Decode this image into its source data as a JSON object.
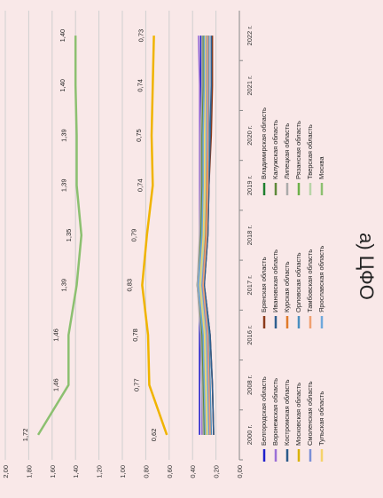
{
  "chart_data": {
    "type": "line",
    "orientation": "rotated-90-clockwise",
    "caption": "а) ЦФО",
    "categories": [
      "2000 г.",
      "2008 г.",
      "2016 г.",
      "2017 г.",
      "2018 г.",
      "2019 г.",
      "2020 г.",
      "2021 г.",
      "2022 г."
    ],
    "y_ticks": [
      "0,00",
      "0,20",
      "0,40",
      "0,60",
      "0,80",
      "1,00",
      "1,20",
      "1,40",
      "1,60",
      "1,80",
      "2,00"
    ],
    "ylim": [
      0,
      2
    ],
    "grid": true,
    "legend_position": "right",
    "series": [
      {
        "name": "Белгородская область",
        "color": "#1f1fcc",
        "values": [
          0.34,
          0.34,
          0.34,
          0.34,
          0.33,
          0.33,
          0.33,
          0.33,
          0.33
        ]
      },
      {
        "name": "Брянская область",
        "color": "#8b3a1a",
        "values": [
          0.22,
          0.23,
          0.25,
          0.3,
          0.27,
          0.26,
          0.24,
          0.23,
          0.23
        ]
      },
      {
        "name": "Владимирская область",
        "color": "#1e7f2e",
        "values": [
          0.3,
          0.31,
          0.32,
          0.36,
          0.33,
          0.32,
          0.31,
          0.3,
          0.3
        ]
      },
      {
        "name": "Воронежская область",
        "color": "#9b6fd6",
        "values": [
          0.32,
          0.32,
          0.33,
          0.35,
          0.34,
          0.34,
          0.34,
          0.34,
          0.35
        ]
      },
      {
        "name": "Ивановская область",
        "color": "#2f5f8f",
        "values": [
          0.22,
          0.23,
          0.25,
          0.3,
          0.27,
          0.26,
          0.25,
          0.24,
          0.24
        ]
      },
      {
        "name": "Калужская область",
        "color": "#5e8a3a",
        "values": [
          0.3,
          0.31,
          0.32,
          0.35,
          0.33,
          0.32,
          0.32,
          0.31,
          0.31
        ]
      },
      {
        "name": "Костромская область",
        "color": "#2b5a8a",
        "values": [
          0.25,
          0.26,
          0.27,
          0.32,
          0.29,
          0.28,
          0.27,
          0.27,
          0.27
        ]
      },
      {
        "name": "Курская область",
        "color": "#e07b2a",
        "values": [
          0.26,
          0.27,
          0.28,
          0.31,
          0.29,
          0.28,
          0.28,
          0.28,
          0.28
        ]
      },
      {
        "name": "Липецкая область",
        "color": "#aaaaaa",
        "values": [
          0.31,
          0.32,
          0.33,
          0.36,
          0.34,
          0.33,
          0.33,
          0.32,
          0.32
        ]
      },
      {
        "name": "Московская область",
        "color": "#d9b100",
        "values": [
          0.28,
          0.29,
          0.3,
          0.33,
          0.31,
          0.3,
          0.3,
          0.3,
          0.3
        ]
      },
      {
        "name": "Орловская область",
        "color": "#4a8fc0",
        "values": [
          0.24,
          0.25,
          0.26,
          0.31,
          0.28,
          0.27,
          0.26,
          0.26,
          0.26
        ]
      },
      {
        "name": "Рязанская область",
        "color": "#6db04a",
        "values": [
          0.27,
          0.28,
          0.29,
          0.33,
          0.3,
          0.29,
          0.29,
          0.28,
          0.28
        ]
      },
      {
        "name": "Смоленская область",
        "color": "#7a8fd6",
        "values": [
          0.26,
          0.27,
          0.28,
          0.32,
          0.3,
          0.29,
          0.28,
          0.28,
          0.28
        ]
      },
      {
        "name": "Тамбовская область",
        "color": "#f0a070",
        "values": [
          0.25,
          0.26,
          0.27,
          0.31,
          0.28,
          0.27,
          0.27,
          0.27,
          0.27
        ]
      },
      {
        "name": "Тверская область",
        "color": "#b8d4a8",
        "values": [
          0.27,
          0.28,
          0.29,
          0.33,
          0.3,
          0.29,
          0.29,
          0.29,
          0.29
        ]
      },
      {
        "name": "Тульская область",
        "color": "#f5d36a",
        "values": [
          0.28,
          0.29,
          0.3,
          0.34,
          0.31,
          0.3,
          0.3,
          0.29,
          0.29
        ]
      },
      {
        "name": "Ярославская область",
        "color": "#6fa8dc",
        "values": [
          0.29,
          0.3,
          0.31,
          0.35,
          0.32,
          0.31,
          0.31,
          0.3,
          0.3
        ]
      },
      {
        "name": "Москва",
        "color": "#8cc070",
        "values": [
          1.72,
          1.46,
          1.46,
          1.39,
          1.35,
          1.39,
          1.39,
          1.4,
          1.4
        ],
        "labels": [
          "1,72",
          "1,46",
          "1,46",
          "1,39",
          "1,35",
          "1,39",
          "1,39",
          "1,40",
          "1,40"
        ]
      },
      {
        "name": "",
        "color": "#f0b400",
        "values": [
          0.62,
          0.77,
          0.78,
          0.83,
          0.79,
          0.74,
          0.75,
          0.74,
          0.73
        ],
        "labels": [
          "0,62",
          "0,77",
          "0,78",
          "0,83",
          "0,79",
          "0,74",
          "0,75",
          "0,74",
          "0,73"
        ]
      }
    ]
  }
}
